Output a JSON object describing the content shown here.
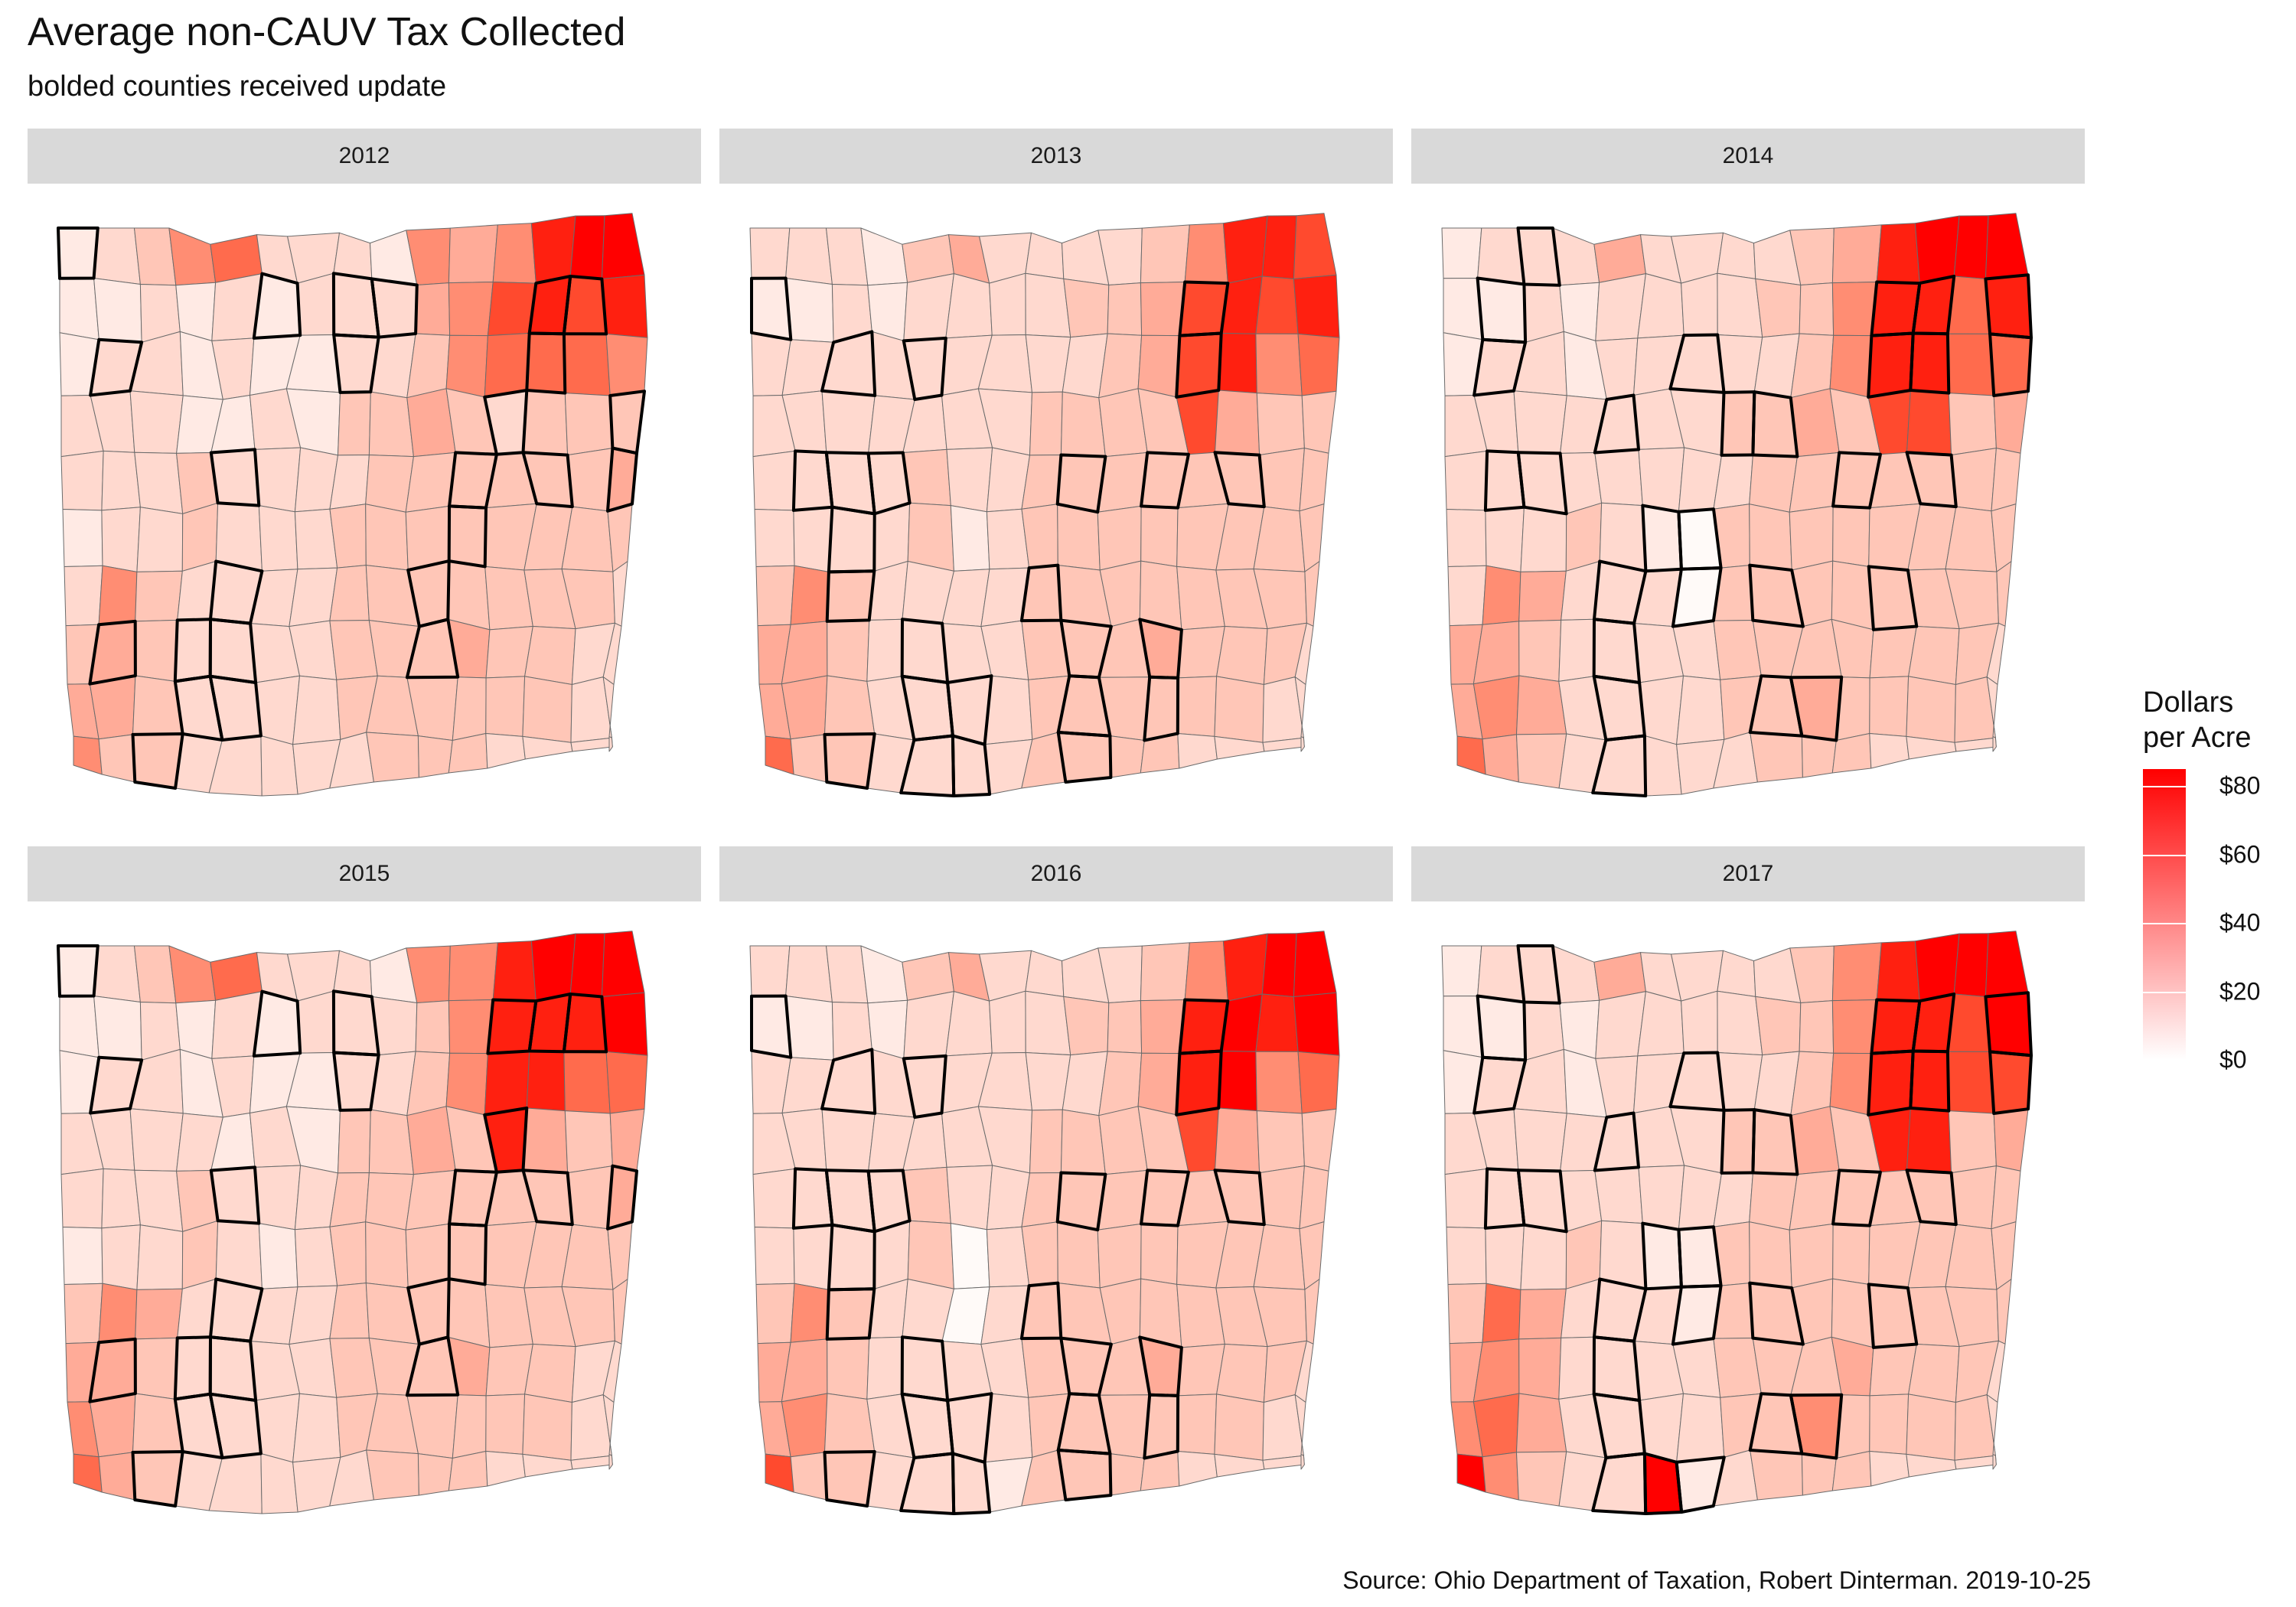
{
  "title": "Average non-CAUV Tax Collected",
  "subtitle": "bolded counties received update",
  "caption": "Source: Ohio Department of Taxation, Robert Dinterman. 2019-10-25",
  "legend": {
    "title_lines": [
      "Dollars",
      "per Acre"
    ],
    "min": 0,
    "max": 85,
    "ticks": [
      {
        "value": 0,
        "label": "$0"
      },
      {
        "value": 20,
        "label": "$20"
      },
      {
        "value": 40,
        "label": "$40"
      },
      {
        "value": 60,
        "label": "$60"
      },
      {
        "value": 80,
        "label": "$80"
      }
    ],
    "color_low": "#ffffff",
    "color_high": "#ff0000"
  },
  "colors": {
    "strip": "#d9d9d9",
    "county_border": "#6b6b6b",
    "bold_border": "#000000"
  },
  "panels": [
    {
      "year": "2012",
      "rows": [
        "1B 2 3 5 6 2 2 2 1 5 4 5 8 9 9",
        "1 1 2 1 2 1B 2 2B 2B 4 5 7 8B 7B 8",
        "1 2B 2 1 2 1 1 2B 2 3 5 6 6B 6 5",
        "2 2 2 1 1 2 1 3 3 4 3 2B 3 3 3B",
        "2 2 2 3 2B 2 2 2 3 3 3B 3 3B 3 4B",
        "1 2 2 3 2 2 2 3 3 3 3B 3 3 3 3",
        "2 5 3 2 2B 2 2 3 3 3B 3 3 3 3 2",
        "3 4B 3 2B 2B 2 2 3 3 3B 4 3 3 2 2",
        "4 4 3 2B 2B 2 2 3 3 3 3 3 3 2 2",
        "5 3 3B 2 2 2 2 2 3 3 3 2 2 2 2"
      ]
    },
    {
      "year": "2013",
      "rows": [
        "2 2 2 1 3 4 2 2 2 2 3 5 8 8 7",
        "1B 1 2 1 2 2 2 2 3 3 4 7B 8 7 8",
        "2 2 2B 2 2B 2 2 2 2 3 4 7B 8 5 6",
        "2 2 2 2 2 2 2 3 3 3 3 7 4 3 3",
        "2 2B 2B 2B 3 2 2 3 3B 3 3B 3 3B 3 3",
        "2 2 2B 2 3 1 2 3 3 3 3 3 3 3 3",
        "3 5 3B 2 2 2 2 3B 3 3 3 3 3 3 3",
        "4 4 3 2 2B 2 2 3 3B 3 4B 3 3 3 2",
        "4 4 3 2 2B 2B 2 3 3B 3 3B 3 3 2 2",
        "6 3 3B 2 2B 2B 2 3 3B 3 3 2 2 2 2"
      ]
    },
    {
      "year": "2014",
      "rows": [
        "1 2 2B 2 4 2 2 2 2 3 4 8 9 9 9",
        "1 1B 2 1 2 2 2 2 3 3 5 8B 8B 6 8B",
        "1 2B 2 1 2 2 2B 2 2 3 5 8B 8B 6 6B",
        "2 2 2 2 2B 2 2 3B 3B 4 3 7 7 3 4",
        "2 2B 2B 2 2 2 2 2 3 3 3B 3 3B 3 3",
        "2 2 2 3 2 1B 0B 3 3 3 3 3 3 3 3",
        "2 5 4 2 2B 2 0B 3 3B 3 3 3B 3 3 3",
        "4 4 3 2 2B 2 2 3 3 3 3 3 3 3 2",
        "4 5 4 2 2B 2 2 3 3B 4B 3 3 3 3 2",
        "6 4 3 2 2B 2 2 2 3 3 3 2 2 2 2"
      ]
    },
    {
      "year": "2015",
      "rows": [
        "1B 2 3 5 6 2 2 2 1 5 5 8 9 9 9",
        "1 1 2 1 2 1B 2 2B 2 3 5 8B 8B 8B 9",
        "1 2B 2 1 2 1 1 2B 2 3 5 8 8 6 6",
        "2 2 2 2 1 2 1 3 3 4 3 8B 4 3 4",
        "2 2 2 3 2B 2 2 3 3 3 3B 3 3B 3 4B",
        "1 2 2 3 2 1 2 3 3 3 3B 3 3 3 3",
        "3 5 4 2 2B 2 2 3 3 3B 3 3 3 3 3",
        "4 4B 3 2B 2B 2 2 3 3 3B 4 3 3 2 2",
        "5 4 3 2B 2B 2 2 3 3 3 3 3 3 2 2",
        "6 4 3B 2 2 2 2 2 3 3 3 2 2 2 2"
      ]
    },
    {
      "year": "2016",
      "rows": [
        "2 2 2 1 3 4 2 2 2 2 3 5 8 9 9",
        "1B 1 2 1 2 2 2 2 3 3 4 8B 9 8 9",
        "2 2 2B 2 2B 2 2 2 2 3 4 8B 9 5 6",
        "2 2 2 2 2 2 2 3 3 3 3 7 4 3 3",
        "2 2B 2B 2B 3 2 2 3 3B 3 3B 3 3B 3 3",
        "2 2 2B 2 3 0 2 3 3 3 3 3 3 3 3",
        "3 5 3B 2 2 0 2 3B 3 3 3 3 3 3 3",
        "4 4 3 2 2B 2 2 3 3B 3 4B 3 3 3 2",
        "4 5 3 2 2B 2B 2 3 3B 3 3B 3 3 2 2",
        "7 3 3B 2 2B 2B 1 3 3B 3 3 2 2 2 2"
      ]
    },
    {
      "year": "2017",
      "rows": [
        "1 2 2B 2 4 2 2 2 2 3 5 8 9 9 9",
        "1 1B 2 1 2 2 2 2 3 3 5 8B 8B 7 9B",
        "1 2B 2 1 2 2 2B 2 2 3 5 8B 8B 7 7B",
        "2 2 2 2 2B 2 2 3B 3B 4 3 8 8 3 4",
        "2 2B 2B 2 2 2 2 2 3 3 3B 3 3B 3 3",
        "2 2 2 3 2 1B 1B 3 3 3 3 3 3 3 3",
        "3 6 4 2 2B 2 1B 3 3B 3 3 3B 3 3 3",
        "4 5 4 2 2B 2 2 3 3 3 4 3 3 3 2",
        "5 6 4 2 2B 2 2 3 3B 5B 3 3 3 3 2",
        "9 5 3 2 2B 9B 1B 2 3 3 3 2 2 2 2"
      ]
    }
  ]
}
